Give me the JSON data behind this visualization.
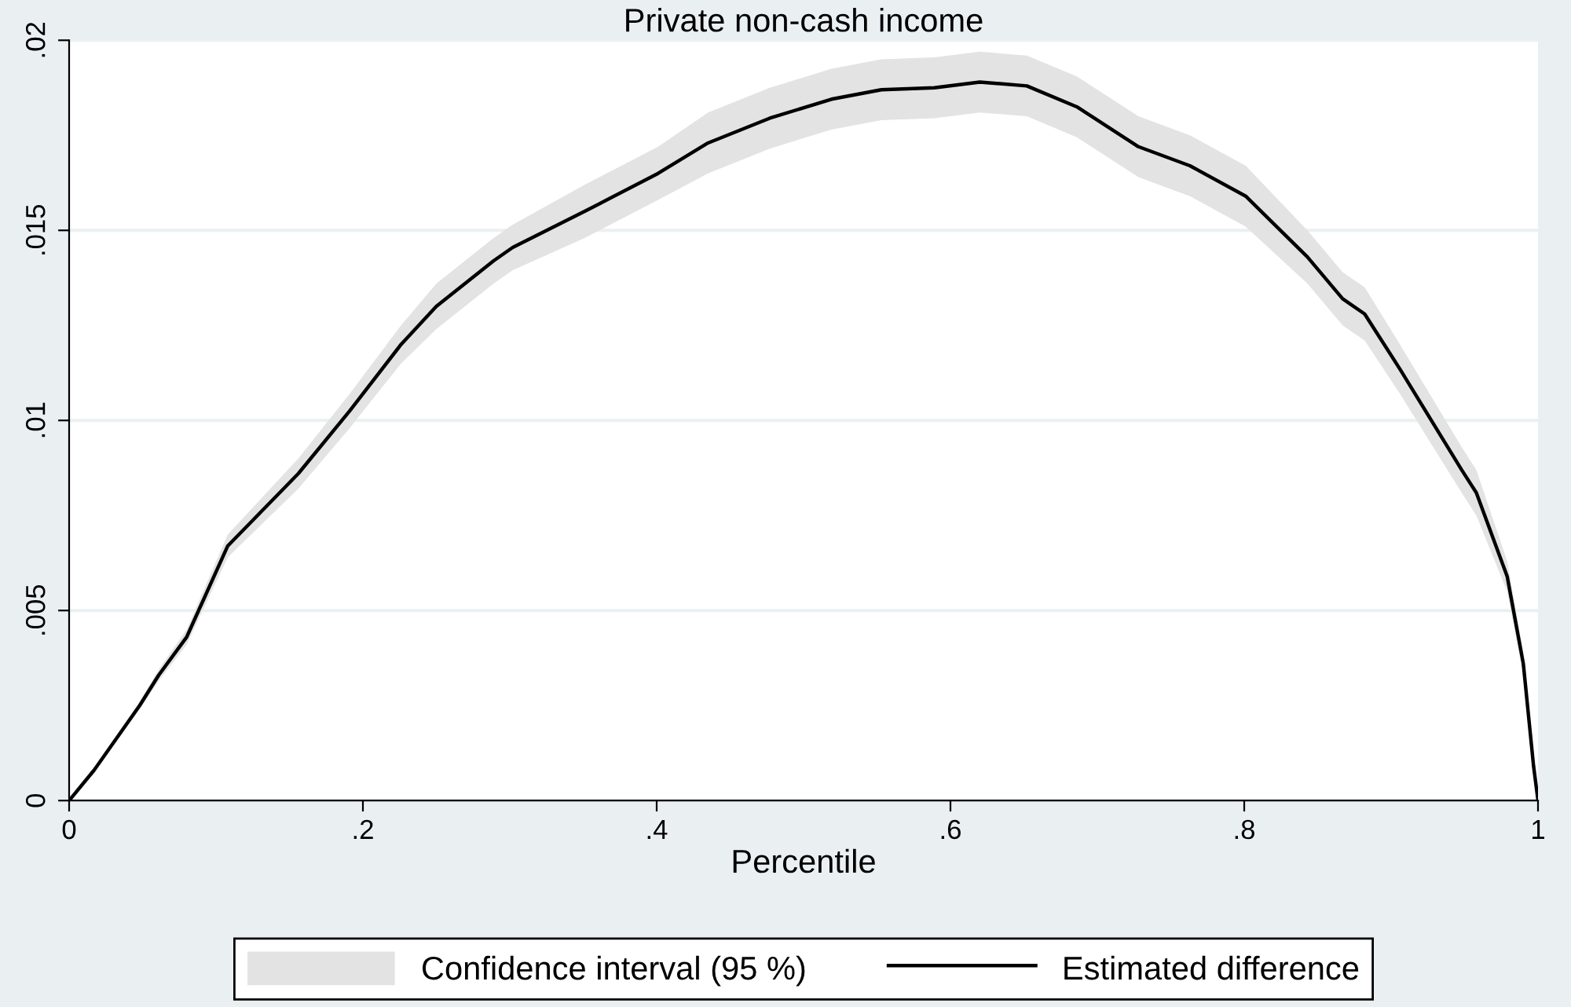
{
  "chart_data": {
    "type": "line",
    "title": "Private non-cash income",
    "xlabel": "Percentile",
    "x": [
      0,
      0.017,
      0.048,
      0.061,
      0.08,
      0.108,
      0.156,
      0.191,
      0.226,
      0.25,
      0.289,
      0.302,
      0.351,
      0.401,
      0.435,
      0.477,
      0.519,
      0.553,
      0.589,
      0.62,
      0.652,
      0.686,
      0.728,
      0.763,
      0.801,
      0.843,
      0.867,
      0.882,
      0.906,
      0.948,
      0.958,
      0.979,
      0.99,
      0.997,
      1
    ],
    "series": [
      {
        "name": "Estimated difference",
        "type": "line",
        "color": "#000000",
        "values": [
          0,
          0.0008,
          0.0025,
          0.0033,
          0.0043,
          0.0067,
          0.0086,
          0.01025,
          0.012,
          0.013,
          0.0142,
          0.01455,
          0.0155,
          0.0165,
          0.0173,
          0.01795,
          0.01845,
          0.0187,
          0.01875,
          0.0189,
          0.0188,
          0.01825,
          0.0172,
          0.0167,
          0.0159,
          0.0143,
          0.0132,
          0.0128,
          0.01135,
          0.0087,
          0.0081,
          0.0059,
          0.0036,
          0.0009,
          0
        ],
        "upper": [
          0,
          0.00085,
          0.0026,
          0.00345,
          0.0045,
          0.007,
          0.009,
          0.0107,
          0.0125,
          0.0136,
          0.0148,
          0.01515,
          0.0162,
          0.0172,
          0.0181,
          0.01875,
          0.01925,
          0.0195,
          0.01955,
          0.0197,
          0.0196,
          0.01905,
          0.018,
          0.0175,
          0.0167,
          0.015,
          0.0139,
          0.0135,
          0.012,
          0.0093,
          0.0087,
          0.0063,
          0.0039,
          0.001,
          0
        ],
        "lower": [
          0,
          0.00075,
          0.0024,
          0.00315,
          0.0041,
          0.0064,
          0.0082,
          0.0098,
          0.0115,
          0.0124,
          0.0136,
          0.01395,
          0.0148,
          0.0158,
          0.0165,
          0.01715,
          0.01765,
          0.0179,
          0.01795,
          0.0181,
          0.018,
          0.01745,
          0.0164,
          0.0159,
          0.0151,
          0.0136,
          0.0125,
          0.0121,
          0.0107,
          0.0081,
          0.0075,
          0.0055,
          0.0033,
          0.0008,
          0
        ]
      },
      {
        "name": "Confidence interval (95 %)",
        "type": "area",
        "color": "#e3e3e3",
        "values": [
          null,
          null,
          null,
          null,
          null,
          null,
          null,
          null,
          null,
          null,
          null,
          null,
          null,
          null,
          null,
          null,
          null,
          null,
          null,
          null,
          null,
          null,
          null,
          null,
          null,
          null,
          null,
          null,
          null,
          null,
          null,
          null,
          null,
          null,
          null
        ]
      }
    ],
    "xlim": [
      0,
      1
    ],
    "xticks": [
      0,
      {
        "value": 0.2,
        "label": ".2"
      },
      {
        "value": 0.4,
        "label": ".4"
      },
      {
        "value": 0.6,
        "label": ".6"
      },
      {
        "value": 0.8,
        "label": ".8"
      },
      1
    ],
    "ylim": [
      0,
      0.02
    ],
    "yticks": [
      0,
      {
        "value": 0.005,
        "label": ".005"
      },
      {
        "value": 0.01,
        "label": ".01"
      },
      {
        "value": 0.015,
        "label": ".015"
      },
      {
        "value": 0.02,
        "label": ".02"
      }
    ],
    "grid": "y",
    "legend": "bottom",
    "line_style": "solid",
    "marker": "none"
  }
}
